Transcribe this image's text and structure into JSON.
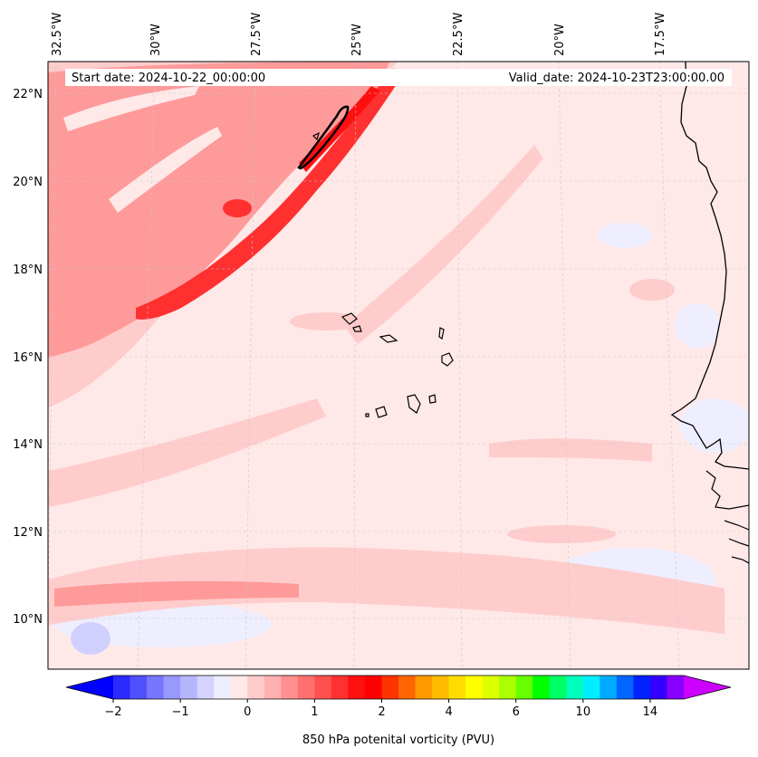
{
  "header": {
    "start_date": "Start date: 2024-10-22_00:00:00",
    "valid_date": "Valid_date: 2024-10-23T23:00:00.00"
  },
  "axes": {
    "lon_labels": [
      "32.5°W",
      "30°W",
      "27.5°W",
      "25°W",
      "22.5°W",
      "20°W",
      "17.5°W"
    ],
    "lat_labels": [
      "22°N",
      "20°N",
      "18°N",
      "16°N",
      "14°N",
      "12°N",
      "10°N"
    ]
  },
  "colorbar": {
    "label": "850 hPa potenital vorticity (PVU)",
    "ticks": [
      "−2",
      "−1",
      "0",
      "1",
      "2",
      "4",
      "6",
      "10",
      "14"
    ],
    "colors": [
      "#0000ff",
      "#2a2aff",
      "#5050ff",
      "#7676ff",
      "#9898ff",
      "#b6b6ff",
      "#d4d4ff",
      "#eeeeff",
      "#ffe8e8",
      "#ffcccc",
      "#ffb0b0",
      "#ff9090",
      "#ff7070",
      "#ff5050",
      "#ff3030",
      "#ff1010",
      "#ff0000",
      "#ff3300",
      "#ff6600",
      "#ff9900",
      "#ffbb00",
      "#ffdd00",
      "#ffff00",
      "#ddff00",
      "#aaff00",
      "#66ff00",
      "#00ff00",
      "#00ff66",
      "#00ffbb",
      "#00eeff",
      "#00aaff",
      "#0066ff",
      "#0022ff",
      "#3300ff",
      "#8800ff",
      "#cc00ff"
    ]
  },
  "colors": {
    "background": "#ffe8e8",
    "light_pink": "#ffcccc",
    "mid_pink": "#ff9a9a",
    "red": "#ff3030",
    "deep_red": "#ff1010",
    "pale_blue": "#eeeeff",
    "blue": "#d0d0ff"
  }
}
